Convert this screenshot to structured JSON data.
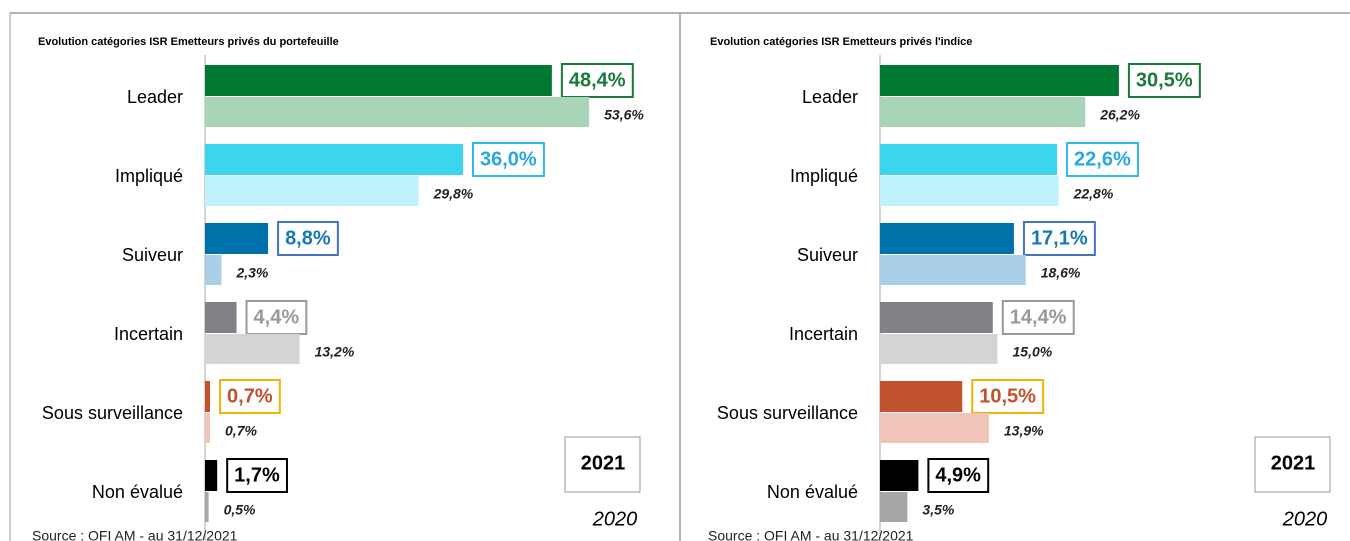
{
  "chart_data": [
    {
      "type": "bar",
      "orientation": "horizontal",
      "title": "Evolution catégories ISR Emetteurs privés du portefeuille",
      "source": "Source : OFI AM - au 31/12/2021",
      "categories": [
        "Leader",
        "Impliqué",
        "Suiveur",
        "Incertain",
        "Sous surveillance",
        "Non évalué"
      ],
      "xlim": [
        0,
        66
      ],
      "series": [
        {
          "name": "2021",
          "values": [
            48.4,
            36.0,
            8.8,
            4.4,
            0.7,
            1.7
          ],
          "value_labels": [
            "48,4%",
            "36,0%",
            "8,8%",
            "4,4%",
            "0,7%",
            "1,7%"
          ],
          "colors": [
            "#007a33",
            "#3dd5ee",
            "#0072ab",
            "#808285",
            "#c0522e",
            "#000000"
          ]
        },
        {
          "name": "2020",
          "values": [
            53.6,
            29.8,
            2.3,
            13.2,
            0.7,
            0.5
          ],
          "value_labels": [
            "53,6%",
            "29,8%",
            "2,3%",
            "13,2%",
            "0,7%",
            "0,5%"
          ],
          "colors": [
            "#a8d5b8",
            "#bff2fa",
            "#a9d0e6",
            "#d4d4d4",
            "#f0c4b8",
            "#a6a6a6"
          ]
        }
      ]
    },
    {
      "type": "bar",
      "orientation": "horizontal",
      "title": "Evolution catégories ISR Emetteurs privés l'indice",
      "source": "Source : OFI AM - au 31/12/2021",
      "categories": [
        "Leader",
        "Impliqué",
        "Suiveur",
        "Incertain",
        "Sous surveillance",
        "Non évalué"
      ],
      "xlim": [
        0,
        60
      ],
      "series": [
        {
          "name": "2021",
          "values": [
            30.5,
            22.6,
            17.1,
            14.4,
            10.5,
            4.9
          ],
          "value_labels": [
            "30,5%",
            "22,6%",
            "17,1%",
            "14,4%",
            "10,5%",
            "4,9%"
          ],
          "colors": [
            "#007a33",
            "#3dd5ee",
            "#0072ab",
            "#808285",
            "#c0522e",
            "#000000"
          ]
        },
        {
          "name": "2020",
          "values": [
            26.2,
            22.8,
            18.6,
            15.0,
            13.9,
            3.5
          ],
          "value_labels": [
            "26,2%",
            "22,8%",
            "18,6%",
            "15,0%",
            "13,9%",
            "3,5%"
          ],
          "colors": [
            "#a8d5b8",
            "#bff2fa",
            "#a9d0e6",
            "#d4d4d4",
            "#f0c4b8",
            "#a6a6a6"
          ]
        }
      ]
    }
  ]
}
